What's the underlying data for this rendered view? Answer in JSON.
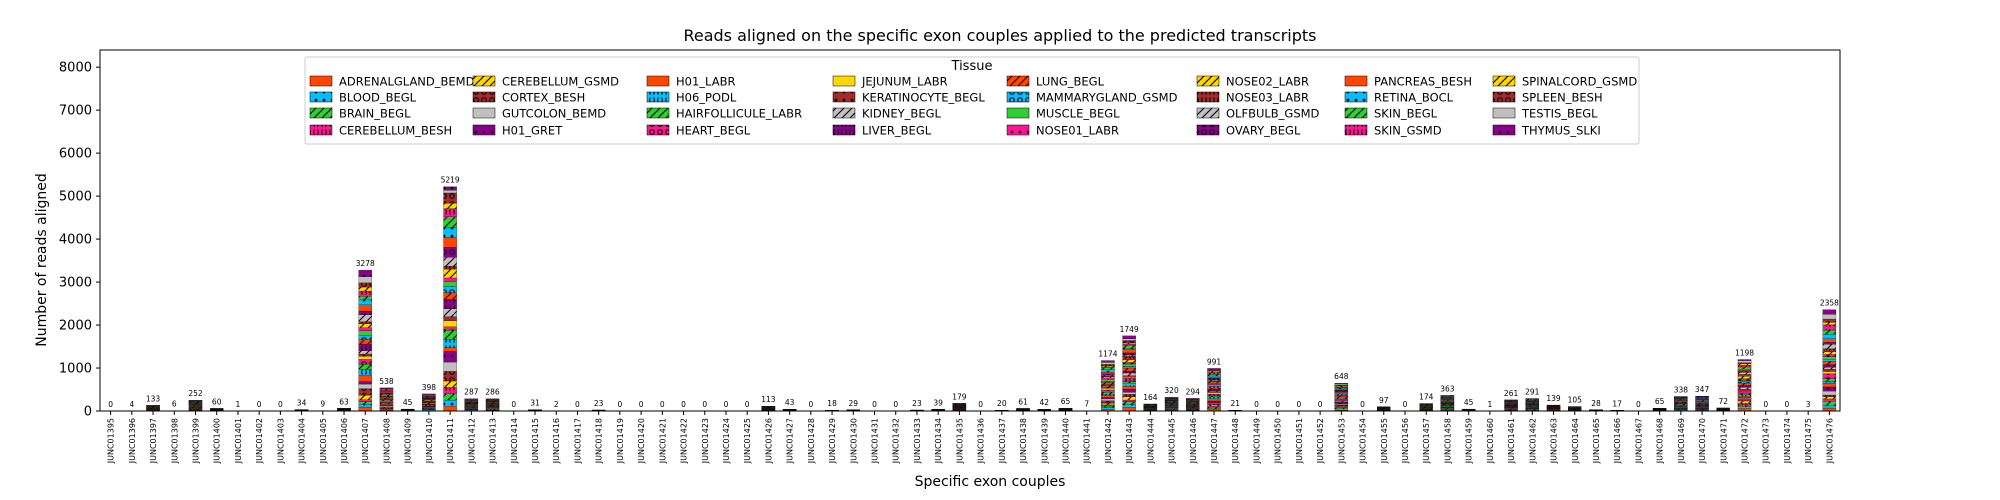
{
  "chart_data": {
    "type": "bar",
    "stacked": true,
    "title": "Reads aligned on the specific exon couples applied to the predicted transcripts",
    "xlabel": "Specific exon couples",
    "ylabel": "Number of reads aligned",
    "ylim": [
      0,
      8400
    ],
    "yticks": [
      0,
      1000,
      2000,
      3000,
      4000,
      5000,
      6000,
      7000,
      8000
    ],
    "grid": false,
    "legend": {
      "title": "Tissue",
      "placement": "top-center",
      "columns": 8
    },
    "categories": [
      "JUNC01395",
      "JUNC01396",
      "JUNC01397",
      "JUNC01398",
      "JUNC01399",
      "JUNC01400",
      "JUNC01401",
      "JUNC01402",
      "JUNC01403",
      "JUNC01404",
      "JUNC01405",
      "JUNC01406",
      "JUNC01407",
      "JUNC01408",
      "JUNC01409",
      "JUNC01410",
      "JUNC01411",
      "JUNC01412",
      "JUNC01413",
      "JUNC01414",
      "JUNC01415",
      "JUNC01416",
      "JUNC01417",
      "JUNC01418",
      "JUNC01419",
      "JUNC01420",
      "JUNC01421",
      "JUNC01422",
      "JUNC01423",
      "JUNC01424",
      "JUNC01425",
      "JUNC01426",
      "JUNC01427",
      "JUNC01428",
      "JUNC01429",
      "JUNC01430",
      "JUNC01431",
      "JUNC01432",
      "JUNC01433",
      "JUNC01434",
      "JUNC01435",
      "JUNC01436",
      "JUNC01437",
      "JUNC01438",
      "JUNC01439",
      "JUNC01440",
      "JUNC01441",
      "JUNC01442",
      "JUNC01443",
      "JUNC01444",
      "JUNC01445",
      "JUNC01446",
      "JUNC01447",
      "JUNC01448",
      "JUNC01449",
      "JUNC01450",
      "JUNC01451",
      "JUNC01452",
      "JUNC01453",
      "JUNC01454",
      "JUNC01455",
      "JUNC01456",
      "JUNC01457",
      "JUNC01458",
      "JUNC01459",
      "JUNC01460",
      "JUNC01461",
      "JUNC01462",
      "JUNC01463",
      "JUNC01464",
      "JUNC01465",
      "JUNC01466",
      "JUNC01467",
      "JUNC01468",
      "JUNC01469",
      "JUNC01470",
      "JUNC01471",
      "JUNC01472",
      "JUNC01473",
      "JUNC01474",
      "JUNC01475",
      "JUNC01476"
    ],
    "totals": [
      0,
      4,
      133,
      6,
      252,
      60,
      1,
      0,
      0,
      34,
      9,
      63,
      3278,
      538,
      45,
      398,
      5219,
      287,
      286,
      0,
      31,
      2,
      0,
      23,
      0,
      0,
      0,
      0,
      0,
      0,
      0,
      113,
      43,
      0,
      18,
      29,
      0,
      0,
      23,
      39,
      179,
      0,
      20,
      61,
      42,
      65,
      7,
      1174,
      1749,
      164,
      320,
      294,
      991,
      21,
      0,
      0,
      0,
      0,
      648,
      0,
      97,
      0,
      174,
      363,
      45,
      1,
      261,
      291,
      139,
      105,
      28,
      17,
      0,
      65,
      338,
      347,
      72,
      1198,
      0,
      0,
      3,
      2358
    ],
    "series": [
      {
        "name": "ADRENALGLAND_BEMD",
        "color": "#ff4500",
        "hatch": ""
      },
      {
        "name": "BLOOD_BEGL",
        "color": "#00bfff",
        "hatch": "dot"
      },
      {
        "name": "BRAIN_BEGL",
        "color": "#32cd32",
        "hatch": "slash"
      },
      {
        "name": "CEREBELLUM_BESH",
        "color": "#ff1493",
        "hatch": "paren"
      },
      {
        "name": "CEREBELLUM_GSMD",
        "color": "#ffd700",
        "hatch": "slash"
      },
      {
        "name": "CORTEX_BESH",
        "color": "#a52a2a",
        "hatch": "ring"
      },
      {
        "name": "GUTCOLON_BEMD",
        "color": "#c0c0c0",
        "hatch": ""
      },
      {
        "name": "H01_GRET",
        "color": "#8b008b",
        "hatch": "dot"
      },
      {
        "name": "H01_LABR",
        "color": "#ff4500",
        "hatch": ""
      },
      {
        "name": "H06_PODL",
        "color": "#00bfff",
        "hatch": "paren"
      },
      {
        "name": "HAIRFOLLICULE_LABR",
        "color": "#32cd32",
        "hatch": "slash"
      },
      {
        "name": "HEART_BEGL",
        "color": "#ff1493",
        "hatch": "ring"
      },
      {
        "name": "JEJUNUM_LABR",
        "color": "#ffd700",
        "hatch": ""
      },
      {
        "name": "KERATINOCYTE_BEGL",
        "color": "#a52a2a",
        "hatch": "dot"
      },
      {
        "name": "KIDNEY_BEGL",
        "color": "#c0c0c0",
        "hatch": "slash"
      },
      {
        "name": "LIVER_BEGL",
        "color": "#8b008b",
        "hatch": "paren"
      },
      {
        "name": "LUNG_BEGL",
        "color": "#ff4500",
        "hatch": "slash"
      },
      {
        "name": "MAMMARYGLAND_GSMD",
        "color": "#00bfff",
        "hatch": "ring"
      },
      {
        "name": "MUSCLE_BEGL",
        "color": "#32cd32",
        "hatch": ""
      },
      {
        "name": "NOSE01_LABR",
        "color": "#ff1493",
        "hatch": "dot"
      },
      {
        "name": "NOSE02_LABR",
        "color": "#ffd700",
        "hatch": "slash"
      },
      {
        "name": "NOSE03_LABR",
        "color": "#a52a2a",
        "hatch": "paren"
      },
      {
        "name": "OLFBULB_GSMD",
        "color": "#c0c0c0",
        "hatch": "slash"
      },
      {
        "name": "OVARY_BEGL",
        "color": "#8b008b",
        "hatch": "ring"
      },
      {
        "name": "PANCREAS_BESH",
        "color": "#ff4500",
        "hatch": ""
      },
      {
        "name": "RETINA_BOCL",
        "color": "#00bfff",
        "hatch": "dot"
      },
      {
        "name": "SKIN_BEGL",
        "color": "#32cd32",
        "hatch": "slash"
      },
      {
        "name": "SKIN_GSMD",
        "color": "#ff1493",
        "hatch": "paren"
      },
      {
        "name": "SPINALCORD_GSMD",
        "color": "#ffd700",
        "hatch": "slash"
      },
      {
        "name": "SPLEEN_BESH",
        "color": "#a52a2a",
        "hatch": "ring"
      },
      {
        "name": "TESTIS_BEGL",
        "color": "#c0c0c0",
        "hatch": ""
      },
      {
        "name": "THYMUS_SLKI",
        "color": "#8b008b",
        "hatch": "dot"
      }
    ]
  }
}
